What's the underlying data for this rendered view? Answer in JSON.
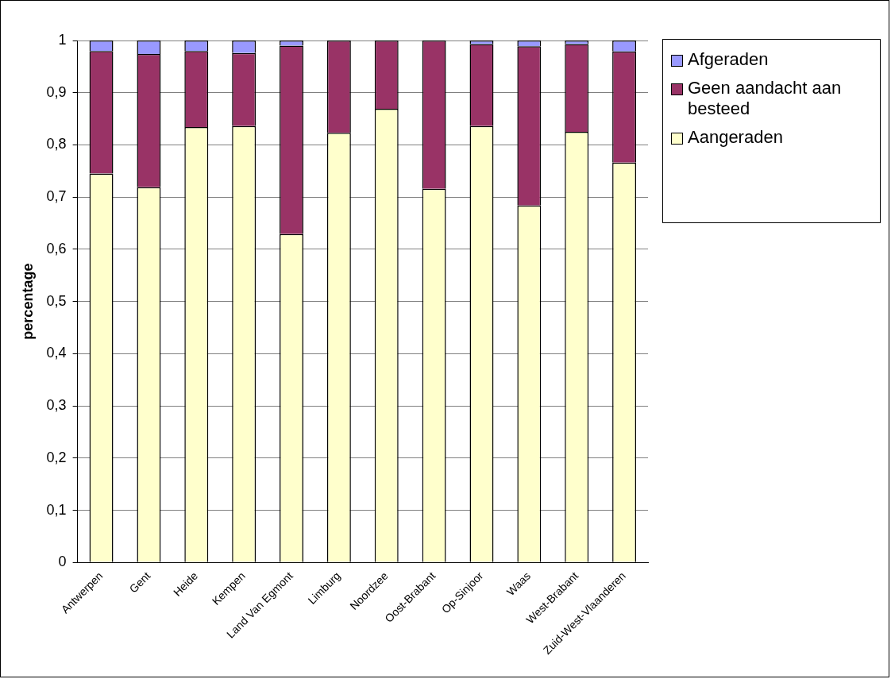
{
  "chart_data": {
    "type": "bar",
    "stacked": true,
    "ylabel": "percentage",
    "categories": [
      "Antwerpen",
      "Gent",
      "Heide",
      "Kempen",
      "Land Van Egmont",
      "Limburg",
      "Noordzee",
      "Oost-Brabant",
      "Op-Sinjoor",
      "Waas",
      "West-Brabant",
      "Zuid-West-Vlaanderen"
    ],
    "series": [
      {
        "name": "Aangeraden",
        "color": "#ffffcc",
        "values": [
          0.745,
          0.719,
          0.834,
          0.836,
          0.629,
          0.823,
          0.869,
          0.716,
          0.836,
          0.684,
          0.825,
          0.766
        ]
      },
      {
        "name": "Geen aandacht aan besteed",
        "color": "#993366",
        "values": [
          0.235,
          0.255,
          0.146,
          0.14,
          0.361,
          0.177,
          0.131,
          0.284,
          0.157,
          0.305,
          0.168,
          0.213
        ]
      },
      {
        "name": "Afgeraden",
        "color": "#9999ff",
        "values": [
          0.02,
          0.026,
          0.02,
          0.024,
          0.01,
          0,
          0,
          0,
          0.007,
          0.011,
          0.007,
          0.021
        ]
      }
    ],
    "ylim": [
      0,
      1
    ],
    "yticks": [
      0,
      {
        "value": 0.1,
        "label": "0,1"
      },
      {
        "value": 0.2,
        "label": "0,2"
      },
      {
        "value": 0.3,
        "label": "0,3"
      },
      {
        "value": 0.4,
        "label": "0,4"
      },
      {
        "value": 0.5,
        "label": "0,5"
      },
      {
        "value": 0.6,
        "label": "0,6"
      },
      {
        "value": 0.7,
        "label": "0,7"
      },
      {
        "value": 0.8,
        "label": "0,8"
      },
      {
        "value": 0.9,
        "label": "0,9"
      },
      1
    ],
    "grid": "y",
    "legend": "top right"
  }
}
